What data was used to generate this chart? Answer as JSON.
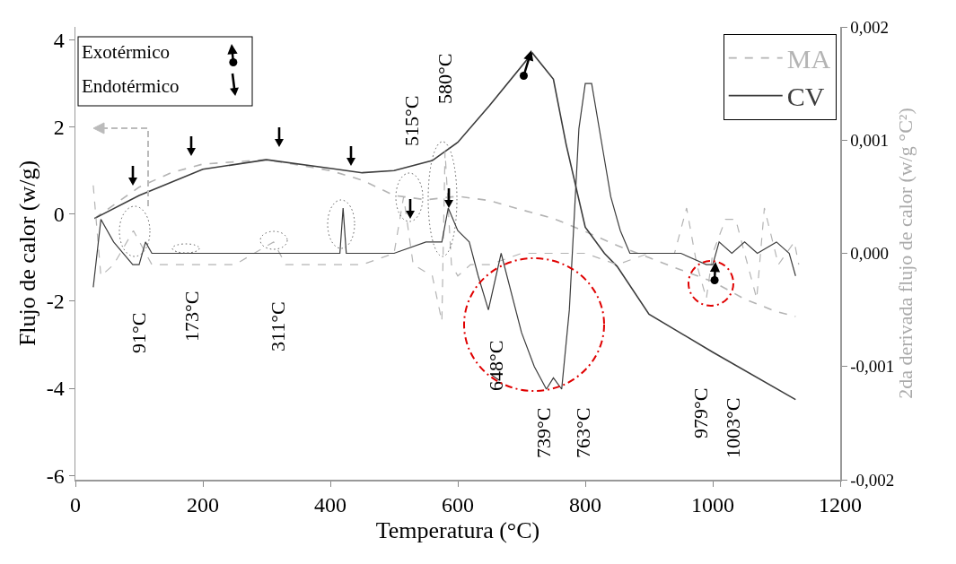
{
  "chart_data": {
    "type": "line",
    "xlabel": "Temperatura (°C)",
    "ylabel": "Flujo de calor (w/g)",
    "y2label": "2da derivada flujo de calor (w/g °C²)",
    "xlim": [
      0,
      1200
    ],
    "xticks": [
      0,
      200,
      400,
      600,
      800,
      1000,
      1200
    ],
    "ylim": [
      -6.1,
      4.3
    ],
    "yticks": [
      4,
      2,
      0,
      -2,
      -4,
      -6
    ],
    "y2lim": [
      -0.002,
      0.002
    ],
    "y2ticks": [
      {
        "value": 0.002,
        "label": "0,002"
      },
      {
        "value": 0.001,
        "label": "0,001"
      },
      {
        "value": 0,
        "label": "0,000"
      },
      {
        "value": -0.001,
        "label": "-0,001"
      },
      {
        "value": -0.002,
        "label": "-0,002"
      }
    ],
    "legend": "top right",
    "series": [
      {
        "name": "MA",
        "color": "#b4b4b4",
        "line_style": "dashed",
        "x": [
          30,
          100,
          150,
          200,
          300,
          400,
          450,
          500,
          550,
          600,
          650,
          700,
          750,
          800,
          850,
          900,
          950,
          1000,
          1050,
          1100,
          1130
        ],
        "values": [
          -0.1,
          0.62,
          0.95,
          1.15,
          1.25,
          1.0,
          0.78,
          0.43,
          0.33,
          0.41,
          0.31,
          0.1,
          -0.1,
          -0.4,
          -0.72,
          -1.0,
          -1.28,
          -1.55,
          -1.95,
          -2.24,
          -2.35
        ]
      },
      {
        "name": "CV",
        "color": "#3c3c3c",
        "line_style": "solid",
        "x": [
          30,
          100,
          200,
          300,
          400,
          450,
          500,
          560,
          600,
          650,
          717,
          750,
          770,
          800,
          830,
          850,
          900,
          1000,
          1130
        ],
        "values": [
          -0.1,
          0.43,
          1.03,
          1.25,
          1.05,
          0.95,
          1.0,
          1.23,
          1.65,
          2.5,
          3.7,
          3.1,
          1.6,
          -0.3,
          -0.9,
          -1.2,
          -2.3,
          -3.17,
          -4.26
        ]
      },
      {
        "color": "#b4b4b4",
        "line_style": "dashed",
        "axis": "y2",
        "x": [
          28,
          40,
          60,
          91,
          120,
          150,
          173,
          200,
          250,
          311,
          330,
          400,
          450,
          500,
          515,
          530,
          560,
          575,
          580,
          590,
          600,
          620,
          650,
          700,
          750,
          800,
          850,
          900,
          940,
          959,
          975,
          990,
          1000,
          1020,
          1036,
          1050,
          1069,
          1081,
          1103,
          1128,
          1135
        ],
        "values": [
          0.0006,
          -0.0002,
          -0.0001,
          0.0002,
          -0.0001,
          -0.0001,
          -0.0001,
          -0.0001,
          -0.0001,
          0.0001,
          -0.0001,
          -0.0001,
          -0.0001,
          0,
          0.0005,
          -0.0001,
          -0.0002,
          -0.0006,
          0.0009,
          -0.0001,
          -0.0002,
          -0.0001,
          -0.0001,
          0,
          0,
          0,
          -0.0001,
          0,
          0,
          0.0004,
          -0.0001,
          -0.0004,
          0,
          0.0003,
          0.0003,
          0,
          -0.0004,
          0.0004,
          -0.0001,
          0.0001,
          -0.0001
        ]
      },
      {
        "color": "#3c3c3c",
        "line_style": "solid",
        "axis": "y2",
        "x": [
          28,
          40,
          60,
          90,
          100,
          110,
          120,
          200,
          300,
          400,
          415,
          420,
          425,
          450,
          500,
          550,
          575,
          585,
          600,
          618,
          632,
          648,
          668,
          700,
          720,
          739,
          750,
          763,
          775,
          790,
          800,
          810,
          825,
          840,
          855,
          870,
          900,
          950,
          990,
          1000,
          1010,
          1030,
          1050,
          1070,
          1100,
          1120,
          1130
        ],
        "values": [
          -0.0003,
          0.0003,
          0.0001,
          -0.0001,
          -0.0001,
          0.0001,
          0,
          0,
          0,
          0,
          0,
          0.0004,
          0,
          0,
          0,
          0.0001,
          0.0001,
          0.0004,
          0.0002,
          0.0001,
          -0.0002,
          -0.0005,
          0,
          -0.0007,
          -0.001,
          -0.0012,
          -0.0011,
          -0.0012,
          -0.0005,
          0.0011,
          0.0015,
          0.0015,
          0.001,
          0.0005,
          0.0002,
          0,
          0,
          0,
          -0.0001,
          -0.0001,
          0.0001,
          0,
          0.0001,
          0,
          0.0001,
          0,
          -0.0002
        ]
      }
    ],
    "annotations": [
      "Exotérmico",
      "Endotérmico",
      "91°C",
      "173°C",
      "311°C",
      "515°C",
      "580°C",
      "648°C",
      "739°C",
      "763°C",
      "979°C",
      "1003°C"
    ]
  }
}
